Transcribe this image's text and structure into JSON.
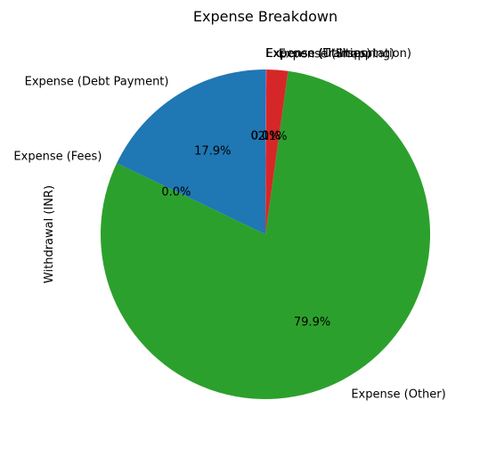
{
  "chart_data": {
    "type": "pie",
    "title": "Expense Breakdown",
    "ylabel": "Withdrawal (INR)",
    "start_angle_deg": 90,
    "direction": "counterclockwise",
    "slices": [
      {
        "label": "Expense (Debt Payment)",
        "value": 17.9,
        "pct_label": "17.9%",
        "color": "#1f77b4"
      },
      {
        "label": "Expense (Fees)",
        "value": 0.0,
        "pct_label": "0.0%",
        "color": "#ff7f0e"
      },
      {
        "label": "Expense (Other)",
        "value": 79.9,
        "pct_label": "79.9%",
        "color": "#2ca02c"
      },
      {
        "label": "Expense (Shopping)",
        "value": 2.1,
        "pct_label": "2.1%",
        "color": "#d62728"
      },
      {
        "label": "Expense (Transportation)",
        "value": 0.1,
        "pct_label": "0.1%",
        "color": "#9467bd"
      },
      {
        "label": "Expense (Utilities)",
        "value": 0.0,
        "pct_label": "0.0%",
        "color": "#8c564b"
      }
    ]
  }
}
